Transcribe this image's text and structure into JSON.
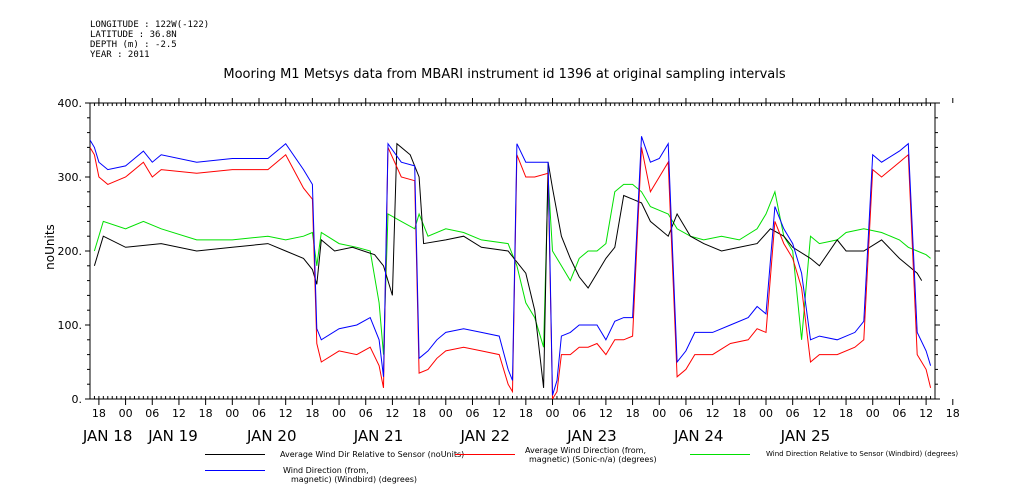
{
  "meta_lines": [
    "LONGITUDE : 122W(-122)",
    "LATITUDE : 36.8N",
    "DEPTH (m) : -2.5",
    "YEAR : 2011"
  ],
  "chart_data": {
    "type": "line",
    "title": "Mooring M1 Metsys data from MBARI instrument id 1396 at original sampling intervals",
    "ylabel": "noUnits",
    "ylim": [
      0,
      400
    ],
    "y_ticks": [
      "0.",
      "100.",
      "200.",
      "300.",
      "400."
    ],
    "xlim_hours": [
      -8,
      182
    ],
    "x_hour_ticks": [
      "18",
      "00",
      "06",
      "12",
      "18",
      "00",
      "06",
      "12",
      "18",
      "00",
      "06",
      "12",
      "18",
      "00",
      "06",
      "12",
      "18",
      "00",
      "06",
      "12",
      "18",
      "00",
      "06",
      "12",
      "18",
      "00",
      "06",
      "12",
      "18",
      "00",
      "06",
      "12",
      "18"
    ],
    "x_day_labels": [
      "JAN 18",
      "JAN 19",
      "JAN 20",
      "JAN 21",
      "JAN 22",
      "JAN 23",
      "JAN 24",
      "JAN 25"
    ],
    "colors": {
      "black": "#000000",
      "red": "#ff0000",
      "green": "#00e000",
      "blue": "#0000ff"
    },
    "series": [
      {
        "name": "Average Wind Dir Relative to Sensor (noUnits)",
        "color": "#000000",
        "points": [
          [
            -7,
            180
          ],
          [
            -5,
            220
          ],
          [
            0,
            205
          ],
          [
            8,
            210
          ],
          [
            16,
            200
          ],
          [
            24,
            205
          ],
          [
            32,
            210
          ],
          [
            36,
            200
          ],
          [
            40,
            190
          ],
          [
            42,
            175
          ],
          [
            43,
            155
          ],
          [
            44,
            215
          ],
          [
            47,
            200
          ],
          [
            51,
            205
          ],
          [
            56,
            195
          ],
          [
            58,
            180
          ],
          [
            60,
            140
          ],
          [
            61,
            345
          ],
          [
            64,
            330
          ],
          [
            66,
            300
          ],
          [
            67,
            210
          ],
          [
            72,
            215
          ],
          [
            76,
            220
          ],
          [
            80,
            205
          ],
          [
            86,
            200
          ],
          [
            90,
            170
          ],
          [
            92,
            120
          ],
          [
            94,
            15
          ],
          [
            95,
            320
          ],
          [
            96,
            285
          ],
          [
            98,
            220
          ],
          [
            100,
            190
          ],
          [
            102,
            165
          ],
          [
            104,
            150
          ],
          [
            106,
            170
          ],
          [
            108,
            190
          ],
          [
            110,
            205
          ],
          [
            112,
            275
          ],
          [
            114,
            270
          ],
          [
            116,
            265
          ],
          [
            118,
            240
          ],
          [
            120,
            230
          ],
          [
            122,
            220
          ],
          [
            124,
            250
          ],
          [
            127,
            220
          ],
          [
            130,
            210
          ],
          [
            134,
            200
          ],
          [
            138,
            205
          ],
          [
            142,
            210
          ],
          [
            145,
            230
          ],
          [
            148,
            220
          ],
          [
            150,
            205
          ],
          [
            154,
            190
          ],
          [
            156,
            180
          ],
          [
            160,
            215
          ],
          [
            162,
            200
          ],
          [
            166,
            200
          ],
          [
            170,
            215
          ],
          [
            174,
            190
          ],
          [
            176,
            180
          ],
          [
            178,
            170
          ],
          [
            179,
            160
          ]
        ]
      },
      {
        "name": "Average Wind Direction (from, magnetic) (Sonic-n/a) (degrees)",
        "color": "#ff0000",
        "points": [
          [
            -8,
            340
          ],
          [
            -7,
            330
          ],
          [
            -6,
            300
          ],
          [
            -4,
            290
          ],
          [
            0,
            300
          ],
          [
            2,
            310
          ],
          [
            4,
            320
          ],
          [
            6,
            300
          ],
          [
            8,
            310
          ],
          [
            16,
            305
          ],
          [
            24,
            310
          ],
          [
            32,
            310
          ],
          [
            36,
            330
          ],
          [
            40,
            285
          ],
          [
            42,
            270
          ],
          [
            43,
            75
          ],
          [
            44,
            50
          ],
          [
            48,
            65
          ],
          [
            52,
            60
          ],
          [
            55,
            70
          ],
          [
            57,
            45
          ],
          [
            58,
            15
          ],
          [
            59,
            340
          ],
          [
            62,
            300
          ],
          [
            65,
            295
          ],
          [
            66,
            35
          ],
          [
            68,
            40
          ],
          [
            70,
            55
          ],
          [
            72,
            65
          ],
          [
            76,
            70
          ],
          [
            80,
            65
          ],
          [
            84,
            60
          ],
          [
            86,
            20
          ],
          [
            87,
            10
          ],
          [
            88,
            330
          ],
          [
            90,
            300
          ],
          [
            92,
            300
          ],
          [
            95,
            305
          ],
          [
            96,
            0
          ],
          [
            97,
            10
          ],
          [
            98,
            60
          ],
          [
            100,
            60
          ],
          [
            102,
            70
          ],
          [
            104,
            70
          ],
          [
            106,
            75
          ],
          [
            108,
            60
          ],
          [
            110,
            80
          ],
          [
            112,
            80
          ],
          [
            114,
            85
          ],
          [
            116,
            340
          ],
          [
            118,
            280
          ],
          [
            120,
            300
          ],
          [
            122,
            320
          ],
          [
            124,
            30
          ],
          [
            126,
            40
          ],
          [
            128,
            60
          ],
          [
            132,
            60
          ],
          [
            136,
            75
          ],
          [
            140,
            80
          ],
          [
            142,
            95
          ],
          [
            144,
            90
          ],
          [
            146,
            240
          ],
          [
            148,
            210
          ],
          [
            150,
            190
          ],
          [
            152,
            150
          ],
          [
            154,
            50
          ],
          [
            156,
            60
          ],
          [
            160,
            60
          ],
          [
            164,
            70
          ],
          [
            166,
            80
          ],
          [
            168,
            310
          ],
          [
            170,
            300
          ],
          [
            174,
            320
          ],
          [
            176,
            330
          ],
          [
            178,
            60
          ],
          [
            180,
            40
          ],
          [
            181,
            15
          ]
        ]
      },
      {
        "name": "Wind Direction Relative to Sensor (Windbird) (degrees)",
        "color": "#00e000",
        "points": [
          [
            -7,
            200
          ],
          [
            -5,
            240
          ],
          [
            0,
            230
          ],
          [
            4,
            240
          ],
          [
            8,
            230
          ],
          [
            16,
            215
          ],
          [
            24,
            215
          ],
          [
            32,
            220
          ],
          [
            36,
            215
          ],
          [
            40,
            220
          ],
          [
            42,
            225
          ],
          [
            43,
            180
          ],
          [
            44,
            225
          ],
          [
            48,
            210
          ],
          [
            52,
            205
          ],
          [
            55,
            200
          ],
          [
            57,
            130
          ],
          [
            58,
            60
          ],
          [
            59,
            250
          ],
          [
            62,
            240
          ],
          [
            65,
            230
          ],
          [
            66,
            250
          ],
          [
            68,
            220
          ],
          [
            72,
            230
          ],
          [
            76,
            225
          ],
          [
            80,
            215
          ],
          [
            86,
            210
          ],
          [
            88,
            180
          ],
          [
            90,
            130
          ],
          [
            92,
            110
          ],
          [
            94,
            70
          ],
          [
            95,
            300
          ],
          [
            96,
            200
          ],
          [
            98,
            180
          ],
          [
            100,
            160
          ],
          [
            102,
            190
          ],
          [
            104,
            200
          ],
          [
            106,
            200
          ],
          [
            108,
            210
          ],
          [
            110,
            280
          ],
          [
            112,
            290
          ],
          [
            114,
            290
          ],
          [
            116,
            280
          ],
          [
            118,
            260
          ],
          [
            120,
            255
          ],
          [
            122,
            250
          ],
          [
            124,
            230
          ],
          [
            127,
            220
          ],
          [
            130,
            215
          ],
          [
            134,
            220
          ],
          [
            138,
            215
          ],
          [
            142,
            230
          ],
          [
            144,
            250
          ],
          [
            146,
            280
          ],
          [
            148,
            220
          ],
          [
            150,
            200
          ],
          [
            152,
            80
          ],
          [
            154,
            220
          ],
          [
            156,
            210
          ],
          [
            160,
            215
          ],
          [
            162,
            225
          ],
          [
            166,
            230
          ],
          [
            170,
            225
          ],
          [
            174,
            215
          ],
          [
            176,
            205
          ],
          [
            178,
            200
          ],
          [
            180,
            195
          ],
          [
            181,
            190
          ]
        ]
      },
      {
        "name": "Wind Direction (from, magnetic) (Windbird) (degrees)",
        "color": "#0000ff",
        "points": [
          [
            -8,
            350
          ],
          [
            -7,
            340
          ],
          [
            -6,
            320
          ],
          [
            -4,
            310
          ],
          [
            0,
            315
          ],
          [
            2,
            325
          ],
          [
            4,
            335
          ],
          [
            6,
            320
          ],
          [
            8,
            330
          ],
          [
            16,
            320
          ],
          [
            24,
            325
          ],
          [
            32,
            325
          ],
          [
            36,
            345
          ],
          [
            40,
            310
          ],
          [
            42,
            290
          ],
          [
            43,
            95
          ],
          [
            44,
            80
          ],
          [
            48,
            95
          ],
          [
            52,
            100
          ],
          [
            55,
            110
          ],
          [
            57,
            80
          ],
          [
            58,
            30
          ],
          [
            59,
            345
          ],
          [
            62,
            320
          ],
          [
            65,
            315
          ],
          [
            66,
            55
          ],
          [
            68,
            65
          ],
          [
            70,
            80
          ],
          [
            72,
            90
          ],
          [
            76,
            95
          ],
          [
            80,
            90
          ],
          [
            84,
            85
          ],
          [
            86,
            40
          ],
          [
            87,
            25
          ],
          [
            88,
            345
          ],
          [
            90,
            320
          ],
          [
            92,
            320
          ],
          [
            95,
            320
          ],
          [
            96,
            5
          ],
          [
            97,
            25
          ],
          [
            98,
            85
          ],
          [
            100,
            90
          ],
          [
            102,
            100
          ],
          [
            104,
            100
          ],
          [
            106,
            100
          ],
          [
            108,
            80
          ],
          [
            110,
            105
          ],
          [
            112,
            110
          ],
          [
            114,
            110
          ],
          [
            116,
            355
          ],
          [
            118,
            320
          ],
          [
            120,
            325
          ],
          [
            122,
            345
          ],
          [
            124,
            50
          ],
          [
            126,
            65
          ],
          [
            128,
            90
          ],
          [
            132,
            90
          ],
          [
            136,
            100
          ],
          [
            140,
            110
          ],
          [
            142,
            125
          ],
          [
            144,
            115
          ],
          [
            146,
            260
          ],
          [
            148,
            230
          ],
          [
            150,
            210
          ],
          [
            152,
            170
          ],
          [
            154,
            80
          ],
          [
            156,
            85
          ],
          [
            160,
            80
          ],
          [
            164,
            90
          ],
          [
            166,
            105
          ],
          [
            168,
            330
          ],
          [
            170,
            320
          ],
          [
            174,
            335
          ],
          [
            176,
            345
          ],
          [
            178,
            90
          ],
          [
            180,
            65
          ],
          [
            181,
            45
          ]
        ]
      }
    ],
    "legend": [
      {
        "label_lines": [
          "Average Wind Dir Relative to Sensor (noUnits)"
        ],
        "color": "#000000"
      },
      {
        "label_lines": [
          "Average Wind Direction (from,",
          "magnetic) (Sonic-n/a) (degrees)"
        ],
        "color": "#ff0000"
      },
      {
        "label_lines": [
          "Wind Direction Relative to Sensor (Windbird) (degrees)"
        ],
        "color": "#00e000"
      },
      {
        "label_lines": [
          "Wind Direction (from,",
          "magnetic) (Windbird) (degrees)"
        ],
        "color": "#0000ff"
      }
    ]
  }
}
